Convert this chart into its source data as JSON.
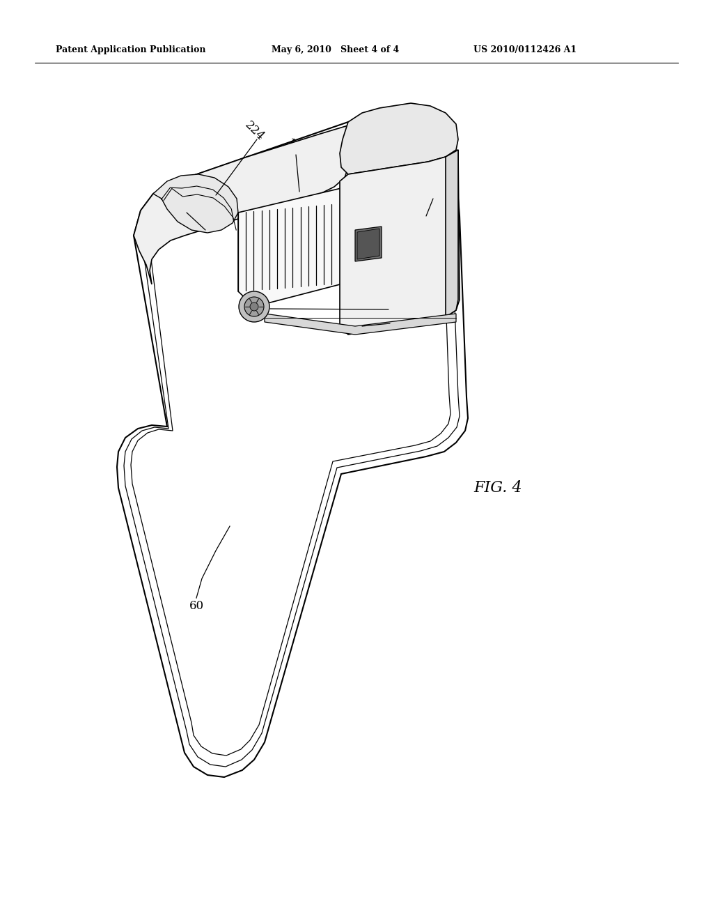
{
  "header_left": "Patent Application Publication",
  "header_mid": "May 6, 2010   Sheet 4 of 4",
  "header_right": "US 2010/0112426 A1",
  "fig_label": "FIG. 4",
  "background_color": "#ffffff",
  "line_color": "#000000"
}
